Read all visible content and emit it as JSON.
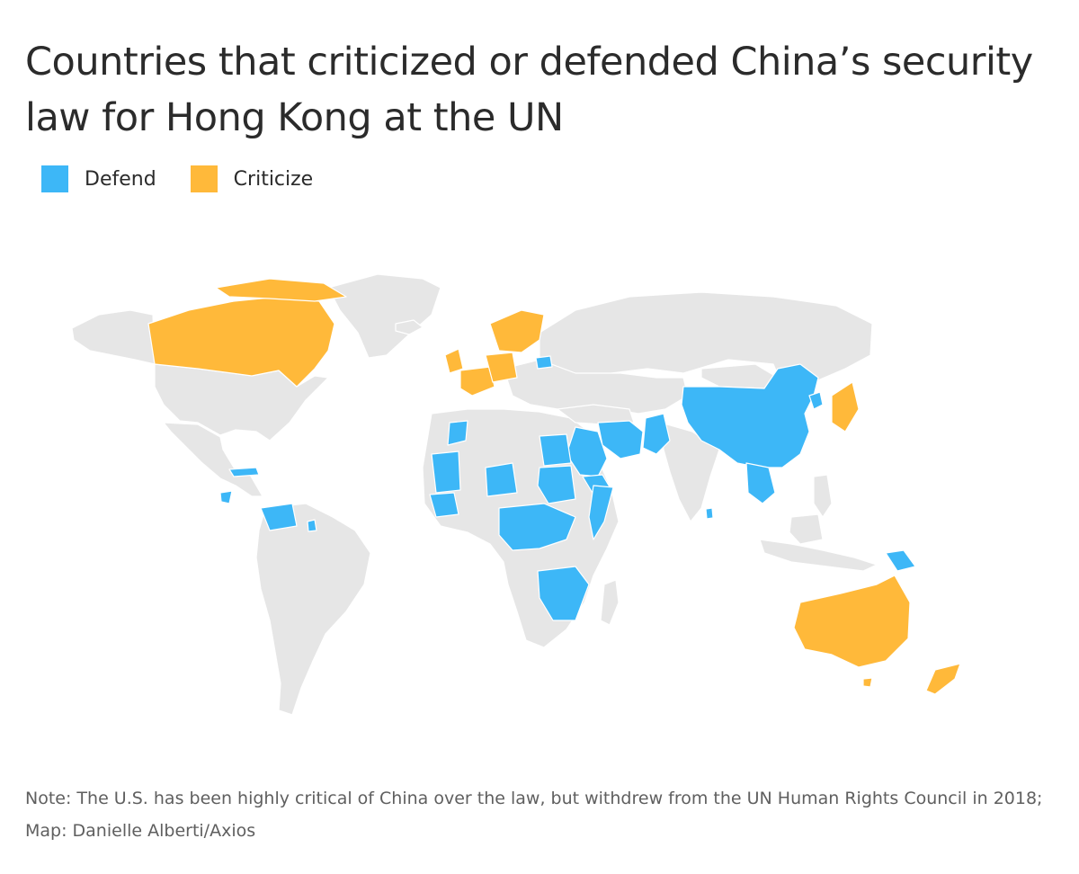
{
  "title": "Countries that criticized or defended China’s security law for Hong Kong at the UN",
  "legend": [
    {
      "label": "Defend",
      "color": "#3db7f7"
    },
    {
      "label": "Criticize",
      "color": "#ffb93a"
    }
  ],
  "colors": {
    "neutral": "#e6e6e6",
    "defend": "#3db7f7",
    "criticize": "#ffb93a"
  },
  "note": "Note: The U.S. has been highly critical of China over the law, but withdrew from the UN Human Rights Council in 2018; Map: Danielle Alberti/Axios"
}
